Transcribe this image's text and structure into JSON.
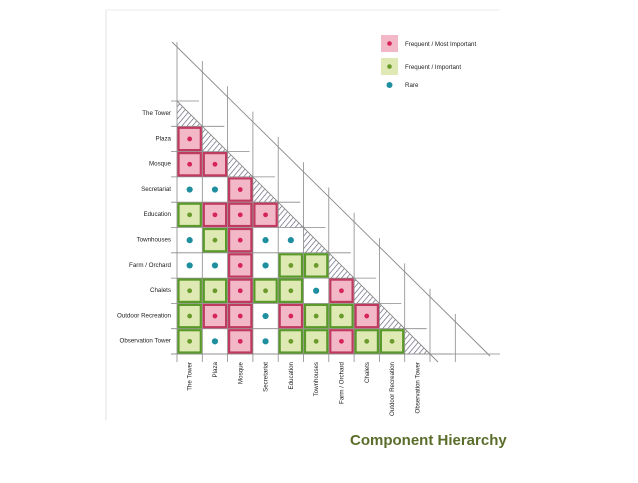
{
  "caption": "Component Hierarchy",
  "components": [
    "The Tower",
    "Plaza",
    "Mosque",
    "Secretariat",
    "Education",
    "Townhouses",
    "Farm / Orchard",
    "Chalets",
    "Outdoor Recreation",
    "Observation Tower"
  ],
  "legend": [
    {
      "key": "frequent_most_important",
      "label": "Frequent / Most Important",
      "fill": "#f2b8c8",
      "border": "#c0395e",
      "dot": "#d6245a"
    },
    {
      "key": "frequent_important",
      "label": "Frequent / Important",
      "fill": "#dfe9b4",
      "border": "#5a9a2a",
      "dot": "#6a9a2a"
    },
    {
      "key": "rare",
      "label": "Rare",
      "dot": "#1f8fa0"
    }
  ],
  "colors": {
    "grid": "#8a8a8a",
    "hatch": "#5a5a78",
    "dot_rare": "#1f8fa0"
  },
  "matrix": [
    {
      "row": "Plaza",
      "cells": [
        "frequent_most_important"
      ]
    },
    {
      "row": "Mosque",
      "cells": [
        "frequent_most_important",
        "frequent_most_important"
      ]
    },
    {
      "row": "Secretariat",
      "cells": [
        "rare",
        "rare",
        "frequent_most_important"
      ]
    },
    {
      "row": "Education",
      "cells": [
        "frequent_important",
        "frequent_most_important",
        "frequent_most_important",
        "frequent_most_important"
      ]
    },
    {
      "row": "Townhouses",
      "cells": [
        "rare",
        "frequent_important",
        "frequent_most_important",
        "rare",
        "rare"
      ]
    },
    {
      "row": "Farm / Orchard",
      "cells": [
        "rare",
        "rare",
        "frequent_most_important",
        "rare",
        "frequent_important",
        "frequent_important"
      ]
    },
    {
      "row": "Chalets",
      "cells": [
        "frequent_important",
        "frequent_important",
        "frequent_most_important",
        "frequent_important",
        "frequent_important",
        "rare",
        "frequent_most_important"
      ]
    },
    {
      "row": "Outdoor Recreation",
      "cells": [
        "frequent_important",
        "frequent_most_important",
        "frequent_most_important",
        "rare",
        "frequent_most_important",
        "frequent_important",
        "frequent_important",
        "frequent_most_important"
      ]
    },
    {
      "row": "Observation Tower",
      "cells": [
        "frequent_important",
        "rare",
        "frequent_most_important",
        "rare",
        "frequent_important",
        "frequent_important",
        "frequent_most_important",
        "frequent_important",
        "frequent_important"
      ]
    }
  ]
}
